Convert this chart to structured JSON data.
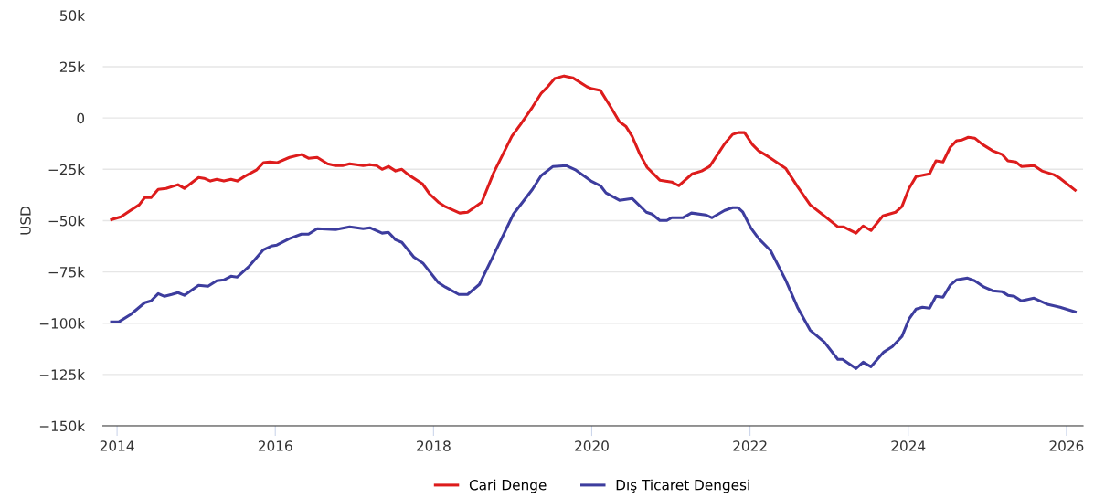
{
  "chart_data": {
    "type": "line",
    "ylabel": "USD",
    "xlim": [
      2013.82,
      2026.21
    ],
    "xticks": [
      2014,
      2016,
      2018,
      2020,
      2022,
      2024,
      2026
    ],
    "ylim": [
      -150000,
      50000
    ],
    "yticks": [
      {
        "value": -150000,
        "label": "−150k"
      },
      {
        "value": -125000,
        "label": "−125k"
      },
      {
        "value": -100000,
        "label": "−100k"
      },
      {
        "value": -75000,
        "label": "−75k"
      },
      {
        "value": -50000,
        "label": "−50k"
      },
      {
        "value": -25000,
        "label": "−25k"
      },
      {
        "value": 0,
        "label": "0"
      },
      {
        "value": 25000,
        "label": "25k"
      },
      {
        "value": 50000,
        "label": "50k"
      }
    ],
    "grid": "y",
    "legend": "bottom",
    "marker": "none",
    "line_style": "solid",
    "series": [
      {
        "name": "Cari Denge",
        "color": "#dd1c1c",
        "x": [
          2013.93,
          2014.05,
          2014.17,
          2014.28,
          2014.35,
          2014.43,
          2014.52,
          2014.62,
          2014.77,
          2014.85,
          2015.03,
          2015.1,
          2015.18,
          2015.26,
          2015.35,
          2015.44,
          2015.52,
          2015.61,
          2015.76,
          2015.85,
          2015.93,
          2016.02,
          2016.18,
          2016.33,
          2016.42,
          2016.53,
          2016.66,
          2016.76,
          2016.85,
          2016.94,
          2017.11,
          2017.2,
          2017.28,
          2017.35,
          2017.43,
          2017.52,
          2017.6,
          2017.68,
          2017.86,
          2017.95,
          2018.06,
          2018.15,
          2018.33,
          2018.43,
          2018.61,
          2018.76,
          2018.99,
          2019.1,
          2019.25,
          2019.36,
          2019.43,
          2019.53,
          2019.65,
          2019.76,
          2019.94,
          2020.0,
          2020.11,
          2020.24,
          2020.35,
          2020.43,
          2020.51,
          2020.61,
          2020.7,
          2020.86,
          2021.01,
          2021.1,
          2021.18,
          2021.27,
          2021.39,
          2021.49,
          2021.59,
          2021.68,
          2021.78,
          2021.85,
          2021.93,
          2022.03,
          2022.11,
          2022.19,
          2022.28,
          2022.45,
          2022.6,
          2022.76,
          2022.91,
          2023.11,
          2023.18,
          2023.34,
          2023.43,
          2023.53,
          2023.68,
          2023.84,
          2023.92,
          2024.01,
          2024.1,
          2024.27,
          2024.35,
          2024.44,
          2024.53,
          2024.61,
          2024.68,
          2024.76,
          2024.84,
          2024.94,
          2025.07,
          2025.19,
          2025.26,
          2025.36,
          2025.43,
          2025.59,
          2025.69,
          2025.84,
          2025.92,
          2026.11
        ],
        "values": [
          -49500,
          -48100,
          -45000,
          -42300,
          -38800,
          -38800,
          -34800,
          -34300,
          -32500,
          -34300,
          -29000,
          -29400,
          -30700,
          -29900,
          -30700,
          -29900,
          -30700,
          -28500,
          -25400,
          -21800,
          -21400,
          -21800,
          -19200,
          -17800,
          -19600,
          -19200,
          -22300,
          -23200,
          -23200,
          -22300,
          -23200,
          -22700,
          -23200,
          -25000,
          -23600,
          -25800,
          -25000,
          -27600,
          -32100,
          -37000,
          -41000,
          -43200,
          -46300,
          -45900,
          -41000,
          -26700,
          -8900,
          -3100,
          5300,
          12000,
          14700,
          19200,
          20500,
          19600,
          15200,
          14300,
          13400,
          5300,
          -1800,
          -4000,
          -8900,
          -17800,
          -24100,
          -30300,
          -31200,
          -33000,
          -30300,
          -27200,
          -25800,
          -23600,
          -17800,
          -12500,
          -8000,
          -7100,
          -7100,
          -12900,
          -16000,
          -17800,
          -20100,
          -24500,
          -33400,
          -42300,
          -46800,
          -53000,
          -53000,
          -56100,
          -52600,
          -54800,
          -47700,
          -45900,
          -43200,
          -34300,
          -28500,
          -27200,
          -20900,
          -21400,
          -14300,
          -11100,
          -10700,
          -9400,
          -9800,
          -12900,
          -16000,
          -17800,
          -20900,
          -21400,
          -23600,
          -23200,
          -25800,
          -27600,
          -29400,
          -35200
        ]
      },
      {
        "name": "Dış Ticaret Dengesi",
        "color": "#3d3d9e",
        "x": [
          2013.93,
          2014.02,
          2014.17,
          2014.35,
          2014.43,
          2014.52,
          2014.6,
          2014.69,
          2014.77,
          2014.85,
          2015.03,
          2015.15,
          2015.26,
          2015.35,
          2015.44,
          2015.52,
          2015.67,
          2015.85,
          2015.95,
          2016.02,
          2016.18,
          2016.33,
          2016.42,
          2016.53,
          2016.76,
          2016.94,
          2017.11,
          2017.2,
          2017.35,
          2017.43,
          2017.52,
          2017.6,
          2017.75,
          2017.87,
          2017.97,
          2018.06,
          2018.15,
          2018.32,
          2018.43,
          2018.58,
          2018.76,
          2019.01,
          2019.25,
          2019.36,
          2019.51,
          2019.68,
          2019.8,
          2019.99,
          2020.11,
          2020.18,
          2020.35,
          2020.51,
          2020.69,
          2020.76,
          2020.86,
          2020.95,
          2021.01,
          2021.15,
          2021.26,
          2021.44,
          2021.52,
          2021.68,
          2021.78,
          2021.85,
          2021.91,
          2022.01,
          2022.11,
          2022.26,
          2022.45,
          2022.6,
          2022.76,
          2022.94,
          2023.11,
          2023.17,
          2023.34,
          2023.43,
          2023.53,
          2023.69,
          2023.8,
          2023.92,
          2024.01,
          2024.1,
          2024.18,
          2024.27,
          2024.35,
          2024.44,
          2024.53,
          2024.61,
          2024.75,
          2024.84,
          2024.96,
          2025.07,
          2025.19,
          2025.26,
          2025.34,
          2025.43,
          2025.59,
          2025.77,
          2025.92,
          2026.11
        ],
        "values": [
          -99400,
          -99400,
          -95800,
          -90000,
          -89100,
          -85600,
          -86900,
          -86000,
          -85100,
          -86400,
          -81500,
          -82000,
          -79300,
          -78900,
          -77100,
          -77500,
          -72200,
          -64200,
          -62400,
          -61900,
          -58800,
          -56600,
          -56600,
          -53900,
          -54400,
          -53000,
          -53900,
          -53500,
          -56100,
          -55700,
          -59300,
          -60600,
          -67700,
          -70900,
          -75800,
          -80200,
          -82400,
          -86000,
          -86000,
          -81100,
          -66800,
          -46800,
          -34800,
          -28100,
          -23600,
          -23200,
          -25400,
          -30700,
          -33000,
          -36500,
          -40100,
          -39200,
          -45900,
          -46800,
          -49900,
          -49900,
          -48600,
          -48600,
          -46300,
          -47200,
          -48600,
          -45000,
          -43700,
          -43700,
          -45900,
          -53500,
          -58800,
          -64600,
          -78900,
          -92200,
          -103400,
          -109200,
          -117600,
          -117600,
          -122100,
          -119000,
          -121200,
          -114100,
          -111400,
          -106500,
          -98000,
          -93100,
          -92200,
          -92700,
          -86900,
          -87300,
          -81500,
          -78900,
          -78000,
          -79300,
          -82400,
          -84200,
          -84700,
          -86400,
          -86900,
          -89100,
          -87800,
          -90900,
          -92200,
          -94500
        ]
      }
    ]
  }
}
